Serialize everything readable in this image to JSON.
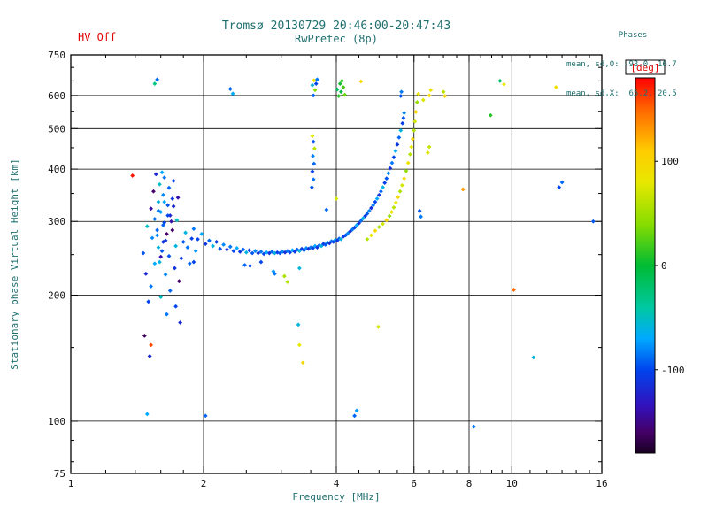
{
  "header": {
    "hv_status": "HV Off",
    "title": "Tromsø 20130729 20:46:00-20:47:43",
    "subtitle": "RwPretec (8p)",
    "phases": {
      "label": "Phases",
      "line_o": "mean, sd,O: -93.0, 16.7",
      "line_x": "mean, sd,X:  65.2, 20.5"
    }
  },
  "colors": {
    "hv_text": "#e00000",
    "heading_text": "#1f6f6f",
    "axis": "#000000",
    "tick_text": "#111111",
    "deg_label": "#e00000"
  },
  "chart_data": {
    "type": "scatter",
    "title": "Tromsø 20130729 20:46:00-20:47:43",
    "subtitle": "RwPretec (8p)",
    "xlabel": "Frequency [MHz]",
    "ylabel": "Stationary phase Virtual Height [km]",
    "x_scale": "log",
    "y_scale": "log",
    "xlim": [
      1,
      16
    ],
    "ylim": [
      75,
      750
    ],
    "x_ticks": [
      1,
      2,
      4,
      6,
      8,
      10,
      16
    ],
    "x_gridlines": [
      2,
      4,
      6,
      8,
      10
    ],
    "x_minor_ticks": [
      1.2,
      1.4,
      1.6,
      1.8,
      2.5,
      3,
      3.5,
      4.5,
      5,
      5.5,
      6.5,
      7,
      7.5,
      8.5,
      9,
      9.5,
      11,
      12,
      13,
      14,
      15
    ],
    "y_ticks": [
      750,
      600,
      500,
      400,
      300,
      200,
      100,
      75
    ],
    "y_gridlines": [
      600,
      500,
      400,
      300,
      200,
      100
    ],
    "y_minor_ticks": [
      80,
      90,
      150,
      250,
      350,
      450,
      550,
      650,
      700
    ],
    "grid": true,
    "legend": "none",
    "colorbar": {
      "label": "[deg]",
      "min": -180,
      "max": 180,
      "ticks": [
        100,
        0,
        -100
      ],
      "stops": [
        {
          "v": 180,
          "color": "#ff0000"
        },
        {
          "v": 150,
          "color": "#ff6600"
        },
        {
          "v": 110,
          "color": "#ffcc00"
        },
        {
          "v": 80,
          "color": "#e8e800"
        },
        {
          "v": 40,
          "color": "#88dd00"
        },
        {
          "v": 0,
          "color": "#00bb33"
        },
        {
          "v": -40,
          "color": "#00c8a0"
        },
        {
          "v": -70,
          "color": "#00aaff"
        },
        {
          "v": -100,
          "color": "#0044ee"
        },
        {
          "v": -135,
          "color": "#3311bb"
        },
        {
          "v": -160,
          "color": "#440066"
        },
        {
          "v": -180,
          "color": "#180022"
        }
      ]
    },
    "points": [
      [
        1.9,
        288,
        -85
      ],
      [
        1.94,
        272,
        -100
      ],
      [
        1.98,
        280,
        -70
      ],
      [
        2.02,
        265,
        -110
      ],
      [
        2.06,
        270,
        -90
      ],
      [
        2.1,
        262,
        -60
      ],
      [
        2.14,
        268,
        -105
      ],
      [
        2.18,
        258,
        -95
      ],
      [
        2.22,
        264,
        -80
      ],
      [
        2.26,
        257,
        -115
      ],
      [
        2.3,
        261,
        -85
      ],
      [
        2.34,
        255,
        -100
      ],
      [
        2.38,
        259,
        -70
      ],
      [
        2.42,
        254,
        -110
      ],
      [
        2.46,
        257,
        -90
      ],
      [
        2.5,
        253,
        -60
      ],
      [
        2.54,
        256,
        -105
      ],
      [
        2.58,
        252,
        -95
      ],
      [
        2.62,
        255,
        -80
      ],
      [
        2.66,
        252,
        -115
      ],
      [
        2.7,
        254,
        -85
      ],
      [
        2.74,
        251,
        -100
      ],
      [
        2.78,
        253,
        -70
      ],
      [
        2.82,
        252,
        -110
      ],
      [
        2.86,
        254,
        -90
      ],
      [
        2.9,
        252,
        -60
      ],
      [
        2.94,
        253,
        -105
      ],
      [
        2.98,
        252,
        -95
      ],
      [
        3.02,
        254,
        -80
      ],
      [
        3.06,
        253,
        -115
      ],
      [
        3.1,
        255,
        -85
      ],
      [
        3.14,
        253,
        -100
      ],
      [
        3.18,
        256,
        -70
      ],
      [
        3.22,
        254,
        -110
      ],
      [
        3.26,
        257,
        -90
      ],
      [
        3.3,
        255,
        -60
      ],
      [
        3.34,
        258,
        -105
      ],
      [
        3.38,
        256,
        -95
      ],
      [
        3.42,
        259,
        -80
      ],
      [
        3.46,
        258,
        -115
      ],
      [
        3.5,
        260,
        -85
      ],
      [
        3.54,
        259,
        -100
      ],
      [
        3.58,
        262,
        -70
      ],
      [
        3.62,
        260,
        -110
      ],
      [
        3.66,
        263,
        -90
      ],
      [
        3.7,
        262,
        -60
      ],
      [
        3.74,
        265,
        -105
      ],
      [
        3.78,
        264,
        -95
      ],
      [
        3.82,
        267,
        -80
      ],
      [
        3.86,
        266,
        -115
      ],
      [
        3.9,
        269,
        -85
      ],
      [
        3.94,
        268,
        -100
      ],
      [
        3.98,
        271,
        -70
      ],
      [
        4.02,
        270,
        -110
      ],
      [
        4.06,
        273,
        -90
      ],
      [
        4.1,
        272,
        -60
      ],
      [
        4.15,
        276,
        -105
      ],
      [
        4.2,
        278,
        -95
      ],
      [
        4.25,
        281,
        -80
      ],
      [
        4.3,
        284,
        -115
      ],
      [
        4.35,
        287,
        -85
      ],
      [
        4.4,
        290,
        -100
      ],
      [
        4.45,
        294,
        -70
      ],
      [
        4.5,
        297,
        -110
      ],
      [
        4.55,
        301,
        -90
      ],
      [
        4.6,
        305,
        -60
      ],
      [
        4.65,
        309,
        -105
      ],
      [
        4.7,
        313,
        -95
      ],
      [
        4.75,
        318,
        -80
      ],
      [
        4.8,
        323,
        -115
      ],
      [
        4.85,
        328,
        -85
      ],
      [
        4.9,
        334,
        -100
      ],
      [
        4.95,
        340,
        -70
      ],
      [
        5.0,
        347,
        -110
      ],
      [
        5.05,
        354,
        -90
      ],
      [
        5.1,
        362,
        -60
      ],
      [
        5.15,
        371,
        -105
      ],
      [
        5.2,
        380,
        -95
      ],
      [
        5.25,
        391,
        -80
      ],
      [
        5.3,
        402,
        -115
      ],
      [
        5.35,
        414,
        -85
      ],
      [
        5.4,
        427,
        -100
      ],
      [
        5.45,
        442,
        -70
      ],
      [
        5.5,
        458,
        -110
      ],
      [
        5.55,
        476,
        -90
      ],
      [
        5.6,
        495,
        -60
      ],
      [
        5.65,
        515,
        -105
      ],
      [
        5.68,
        530,
        -95
      ],
      [
        5.7,
        545,
        -80
      ],
      [
        4.7,
        272,
        60
      ],
      [
        4.8,
        278,
        80
      ],
      [
        4.9,
        285,
        95
      ],
      [
        5.0,
        291,
        55
      ],
      [
        5.1,
        296,
        70
      ],
      [
        5.2,
        302,
        100
      ],
      [
        5.28,
        309,
        45
      ],
      [
        5.34,
        316,
        85
      ],
      [
        5.4,
        324,
        60
      ],
      [
        5.46,
        333,
        80
      ],
      [
        5.52,
        343,
        95
      ],
      [
        5.58,
        354,
        55
      ],
      [
        5.64,
        366,
        70
      ],
      [
        5.7,
        380,
        100
      ],
      [
        5.76,
        396,
        45
      ],
      [
        5.82,
        414,
        85
      ],
      [
        5.88,
        434,
        60
      ],
      [
        5.92,
        452,
        80
      ],
      [
        5.96,
        472,
        95
      ],
      [
        6.0,
        495,
        55
      ],
      [
        6.03,
        520,
        70
      ],
      [
        6.06,
        548,
        100
      ],
      [
        6.1,
        578,
        45
      ],
      [
        6.14,
        605,
        85
      ],
      [
        1.5,
        193,
        -100
      ],
      [
        1.52,
        210,
        -85
      ],
      [
        1.48,
        225,
        -120
      ],
      [
        1.55,
        238,
        -70
      ],
      [
        1.6,
        247,
        -140
      ],
      [
        1.46,
        252,
        -95
      ],
      [
        1.58,
        260,
        -60
      ],
      [
        1.62,
        268,
        -110
      ],
      [
        1.53,
        274,
        -80
      ],
      [
        1.65,
        280,
        -160
      ],
      [
        1.57,
        286,
        -90
      ],
      [
        1.49,
        292,
        -50
      ],
      [
        1.63,
        298,
        -100
      ],
      [
        1.55,
        304,
        -85
      ],
      [
        1.68,
        310,
        -120
      ],
      [
        1.6,
        316,
        -70
      ],
      [
        1.52,
        322,
        -140
      ],
      [
        1.66,
        328,
        -95
      ],
      [
        1.58,
        334,
        -60
      ],
      [
        1.7,
        340,
        -110
      ],
      [
        1.62,
        347,
        -80
      ],
      [
        1.54,
        354,
        -160
      ],
      [
        1.67,
        361,
        -90
      ],
      [
        1.59,
        368,
        -50
      ],
      [
        1.71,
        375,
        -100
      ],
      [
        1.63,
        382,
        -85
      ],
      [
        1.56,
        389,
        -120
      ],
      [
        1.61,
        393,
        -70
      ],
      [
        1.69,
        300,
        -140
      ],
      [
        1.61,
        255,
        -95
      ],
      [
        1.73,
        262,
        -60
      ],
      [
        1.64,
        270,
        -110
      ],
      [
        1.57,
        278,
        -80
      ],
      [
        1.7,
        286,
        -160
      ],
      [
        1.62,
        294,
        -90
      ],
      [
        1.74,
        302,
        -50
      ],
      [
        1.66,
        310,
        -100
      ],
      [
        1.58,
        318,
        -85
      ],
      [
        1.71,
        326,
        -120
      ],
      [
        1.63,
        334,
        -70
      ],
      [
        1.75,
        342,
        -140
      ],
      [
        1.67,
        248,
        -95
      ],
      [
        1.59,
        240,
        -60
      ],
      [
        1.72,
        232,
        -110
      ],
      [
        1.64,
        224,
        -80
      ],
      [
        1.76,
        216,
        -160
      ],
      [
        1.68,
        205,
        -90
      ],
      [
        1.6,
        198,
        -50
      ],
      [
        1.73,
        188,
        -100
      ],
      [
        1.65,
        180,
        -85
      ],
      [
        1.77,
        172,
        -120
      ],
      [
        1.8,
        268,
        -95
      ],
      [
        1.84,
        260,
        -85
      ],
      [
        1.88,
        273,
        -105
      ],
      [
        1.92,
        255,
        -75
      ],
      [
        1.78,
        245,
        -110
      ],
      [
        1.86,
        238,
        -90
      ],
      [
        1.82,
        282,
        -60
      ],
      [
        1.9,
        240,
        -100
      ],
      [
        2.48,
        236,
        -90
      ],
      [
        2.88,
        228,
        -75
      ],
      [
        3.05,
        222,
        55
      ],
      [
        3.3,
        232,
        -60
      ],
      [
        2.7,
        240,
        -100
      ],
      [
        2.9,
        225,
        -85
      ],
      [
        3.1,
        215,
        60
      ],
      [
        2.55,
        235,
        -100
      ],
      [
        3.52,
        362,
        -95
      ],
      [
        3.55,
        378,
        -85
      ],
      [
        3.53,
        395,
        -100
      ],
      [
        3.56,
        412,
        -90
      ],
      [
        3.54,
        430,
        -80
      ],
      [
        3.57,
        448,
        60
      ],
      [
        3.55,
        465,
        -95
      ],
      [
        3.53,
        480,
        75
      ],
      [
        3.55,
        600,
        -90
      ],
      [
        3.58,
        618,
        40
      ],
      [
        3.53,
        635,
        -60
      ],
      [
        3.56,
        652,
        90
      ],
      [
        3.6,
        640,
        -100
      ],
      [
        3.62,
        655,
        -85
      ],
      [
        4.05,
        598,
        10
      ],
      [
        4.1,
        612,
        -5
      ],
      [
        4.15,
        628,
        20
      ],
      [
        4.08,
        640,
        5
      ],
      [
        4.12,
        650,
        15
      ],
      [
        4.18,
        602,
        30
      ],
      [
        4.02,
        620,
        -15
      ],
      [
        2.3,
        622,
        -90
      ],
      [
        2.33,
        606,
        -70
      ],
      [
        1.55,
        640,
        -30
      ],
      [
        1.57,
        655,
        -90
      ],
      [
        4.55,
        648,
        95
      ],
      [
        5.6,
        598,
        -95
      ],
      [
        5.62,
        612,
        -85
      ],
      [
        6.3,
        585,
        75
      ],
      [
        6.5,
        600,
        95
      ],
      [
        6.55,
        618,
        85
      ],
      [
        7.0,
        612,
        60
      ],
      [
        7.05,
        598,
        100
      ],
      [
        9.6,
        638,
        80
      ],
      [
        9.4,
        650,
        -20
      ],
      [
        12.6,
        628,
        90
      ],
      [
        6.45,
        438,
        75
      ],
      [
        6.5,
        452,
        65
      ],
      [
        6.18,
        318,
        -95
      ],
      [
        6.22,
        308,
        -85
      ],
      [
        7.75,
        358,
        130
      ],
      [
        8.95,
        538,
        10
      ],
      [
        10.1,
        206,
        150
      ],
      [
        11.2,
        142,
        -60
      ],
      [
        12.8,
        362,
        -100
      ],
      [
        13.0,
        372,
        -90
      ],
      [
        15.3,
        300,
        -95
      ],
      [
        8.2,
        97,
        -85
      ],
      [
        4.4,
        103,
        -90
      ],
      [
        4.45,
        106,
        -75
      ],
      [
        2.02,
        103,
        -90
      ],
      [
        1.49,
        104,
        -70
      ],
      [
        3.3,
        152,
        80
      ],
      [
        3.36,
        138,
        95
      ],
      [
        3.28,
        170,
        -60
      ],
      [
        4.98,
        168,
        70
      ],
      [
        1.52,
        152,
        160
      ],
      [
        1.38,
        386,
        175
      ],
      [
        1.47,
        160,
        -165
      ],
      [
        1.51,
        143,
        -120
      ],
      [
        3.8,
        320,
        -90
      ],
      [
        4.0,
        340,
        70
      ]
    ]
  }
}
